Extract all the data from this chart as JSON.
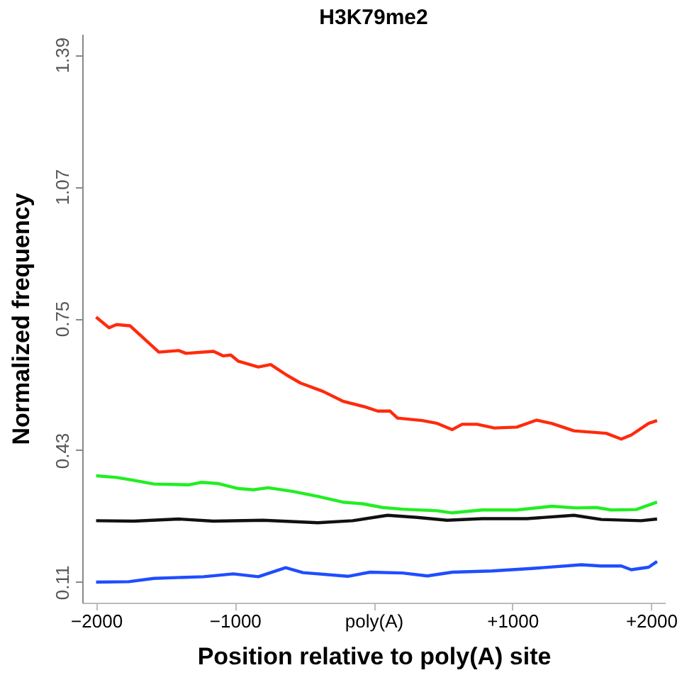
{
  "chart_data": {
    "type": "line",
    "title": "H3K79me2",
    "xlabel": "Position relative to poly(A) site",
    "ylabel": "Normalized frequency",
    "xlim": [
      -2100,
      2100
    ],
    "xticks": [
      -2000,
      -1000,
      {
        "value": 0,
        "label": "poly(A)"
      },
      {
        "value": 1000,
        "label": "+1000"
      },
      {
        "value": 2000,
        "label": "+2000"
      }
    ],
    "ylim": [
      0.06,
      1.44
    ],
    "yticks": [
      0.11,
      0.43,
      0.75,
      1.07,
      1.39
    ],
    "grid": false,
    "legend": false,
    "marker": "none",
    "line_style": "solid",
    "series": [
      {
        "color": "#ff2a0d",
        "x": [
          -2000,
          -1906,
          -1853,
          -1756,
          -1548,
          -1405,
          -1352,
          -1154,
          -1083,
          -1029,
          -975,
          -831,
          -742,
          -634,
          -527,
          -366,
          -222,
          -61,
          29,
          118,
          172,
          352,
          459,
          567,
          638,
          745,
          871,
          1032,
          1175,
          1283,
          1444,
          1677,
          1785,
          1857,
          1982,
          2043
        ],
        "values": [
          0.753,
          0.727,
          0.735,
          0.732,
          0.668,
          0.672,
          0.665,
          0.67,
          0.659,
          0.661,
          0.646,
          0.632,
          0.638,
          0.614,
          0.593,
          0.573,
          0.549,
          0.535,
          0.525,
          0.525,
          0.508,
          0.502,
          0.495,
          0.48,
          0.493,
          0.493,
          0.484,
          0.486,
          0.503,
          0.495,
          0.477,
          0.471,
          0.457,
          0.467,
          0.495,
          0.502
        ]
      },
      {
        "color": "#22ee22",
        "x": [
          -2000,
          -1853,
          -1745,
          -1584,
          -1333,
          -1244,
          -1118,
          -975,
          -867,
          -760,
          -581,
          -401,
          -222,
          -79,
          65,
          208,
          459,
          567,
          782,
          1032,
          1283,
          1462,
          1605,
          1713,
          1892,
          2043
        ],
        "values": [
          0.368,
          0.364,
          0.358,
          0.348,
          0.346,
          0.352,
          0.349,
          0.337,
          0.334,
          0.339,
          0.33,
          0.318,
          0.304,
          0.3,
          0.291,
          0.287,
          0.283,
          0.278,
          0.285,
          0.285,
          0.294,
          0.29,
          0.291,
          0.285,
          0.286,
          0.304
        ]
      },
      {
        "color": "#111111",
        "x": [
          -2000,
          -1728,
          -1405,
          -1154,
          -796,
          -401,
          -151,
          100,
          315,
          530,
          782,
          1104,
          1444,
          1641,
          1928,
          2043
        ],
        "values": [
          0.259,
          0.258,
          0.263,
          0.258,
          0.26,
          0.254,
          0.259,
          0.272,
          0.267,
          0.26,
          0.264,
          0.264,
          0.272,
          0.262,
          0.259,
          0.263
        ]
      },
      {
        "color": "#1f4dff",
        "x": [
          -2000,
          -1764,
          -1584,
          -1226,
          -1011,
          -831,
          -634,
          -509,
          -186,
          -25,
          208,
          387,
          567,
          853,
          1140,
          1498,
          1641,
          1785,
          1857,
          1982,
          2043
        ],
        "values": [
          0.11,
          0.111,
          0.119,
          0.123,
          0.13,
          0.123,
          0.145,
          0.133,
          0.124,
          0.134,
          0.132,
          0.125,
          0.134,
          0.137,
          0.143,
          0.152,
          0.149,
          0.149,
          0.14,
          0.146,
          0.16
        ]
      }
    ]
  }
}
